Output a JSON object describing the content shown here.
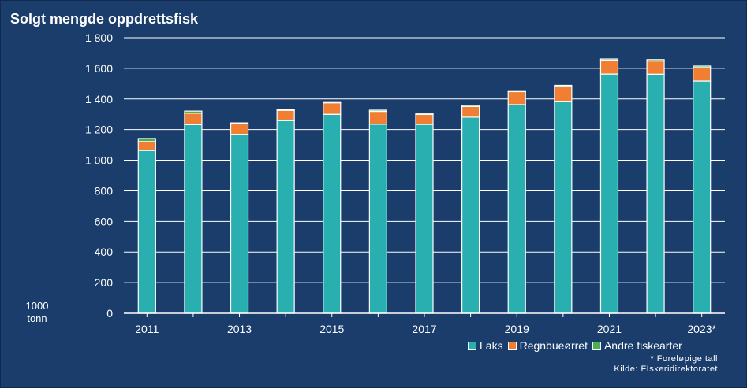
{
  "chart_data": {
    "type": "bar",
    "stacked": true,
    "title": "Solgt mengde oppdrettsfisk",
    "ylabel": "1000 tonn",
    "ylim": [
      0,
      1800
    ],
    "yticks": [
      0,
      200,
      400,
      600,
      800,
      1000,
      1200,
      1400,
      1600,
      1800
    ],
    "ytick_labels": [
      "0",
      "200",
      "400",
      "600",
      "800",
      "1 000",
      "1 200",
      "1 400",
      "1 600",
      "1 800"
    ],
    "categories": [
      "2011",
      "2012",
      "2013",
      "2014",
      "2015",
      "2016",
      "2017",
      "2018",
      "2019",
      "2020",
      "2021",
      "2022",
      "2023*"
    ],
    "xtick_labels": [
      "2011",
      "",
      "2013",
      "",
      "2015",
      "",
      "2017",
      "",
      "2019",
      "",
      "2021",
      "",
      "2023*"
    ],
    "series": [
      {
        "name": "Laks",
        "color": "#2aafb0",
        "values": [
          1064,
          1233,
          1169,
          1259,
          1300,
          1235,
          1234,
          1281,
          1363,
          1385,
          1563,
          1562,
          1517
        ]
      },
      {
        "name": "Regnbueørret",
        "color": "#f07f33",
        "values": [
          58,
          74,
          70,
          67,
          75,
          84,
          65,
          70,
          85,
          97,
          90,
          86,
          88
        ]
      },
      {
        "name": "Andre fiskearter",
        "color": "#4caf50",
        "values": [
          20,
          14,
          5,
          6,
          7,
          8,
          7,
          8,
          6,
          7,
          8,
          9,
          10
        ]
      }
    ],
    "grid": true,
    "legend": "bottom-right"
  },
  "unit_label": {
    "line1": "1000",
    "line2": "tonn"
  },
  "notes": {
    "preliminary": "* Foreløpige tall",
    "source": "Kilde: FIskeridirektoratet"
  },
  "colors": {
    "background": "#1a3d6b",
    "text": "#ffffff",
    "grid": "#ffffff"
  }
}
